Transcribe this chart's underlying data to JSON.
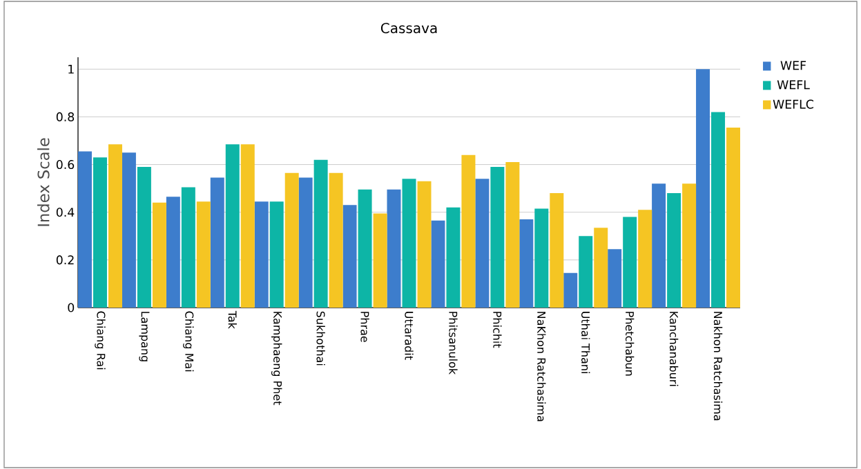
{
  "chart_data": {
    "type": "bar",
    "title": "Cassava",
    "ylabel": "Index Scale",
    "categories": [
      "Chiang Rai",
      "Lampang",
      "Chiang Mai",
      "Tak",
      "Kamphaeng Phet",
      "Sukhothai",
      "Phrae",
      "Uttaradit",
      "Phitsanulok",
      "Phichit",
      "NaKhon Ratchasima",
      "Uthai Thani",
      "Phetchabun",
      "Kanchanaburi",
      "Nakhon Ratchasima"
    ],
    "series": [
      {
        "name": "WEF",
        "color": "#3d7dcc",
        "values": [
          0.655,
          0.65,
          0.465,
          0.545,
          0.445,
          0.545,
          0.43,
          0.495,
          0.365,
          0.54,
          0.37,
          0.145,
          0.245,
          0.52,
          1.0
        ]
      },
      {
        "name": "WEFL",
        "color": "#0db5a6",
        "values": [
          0.63,
          0.59,
          0.505,
          0.685,
          0.445,
          0.62,
          0.495,
          0.54,
          0.42,
          0.59,
          0.415,
          0.3,
          0.38,
          0.48,
          0.82
        ]
      },
      {
        "name": "WEFLC",
        "color": "#f5c523",
        "values": [
          0.685,
          0.44,
          0.445,
          0.685,
          0.565,
          0.565,
          0.395,
          0.53,
          0.64,
          0.61,
          0.48,
          0.335,
          0.41,
          0.52,
          0.755
        ]
      }
    ],
    "ylim": [
      0,
      1.05
    ],
    "yticks": [
      0,
      0.2,
      0.4,
      0.6,
      0.8,
      1
    ],
    "grid": "y",
    "legend": "top right"
  }
}
